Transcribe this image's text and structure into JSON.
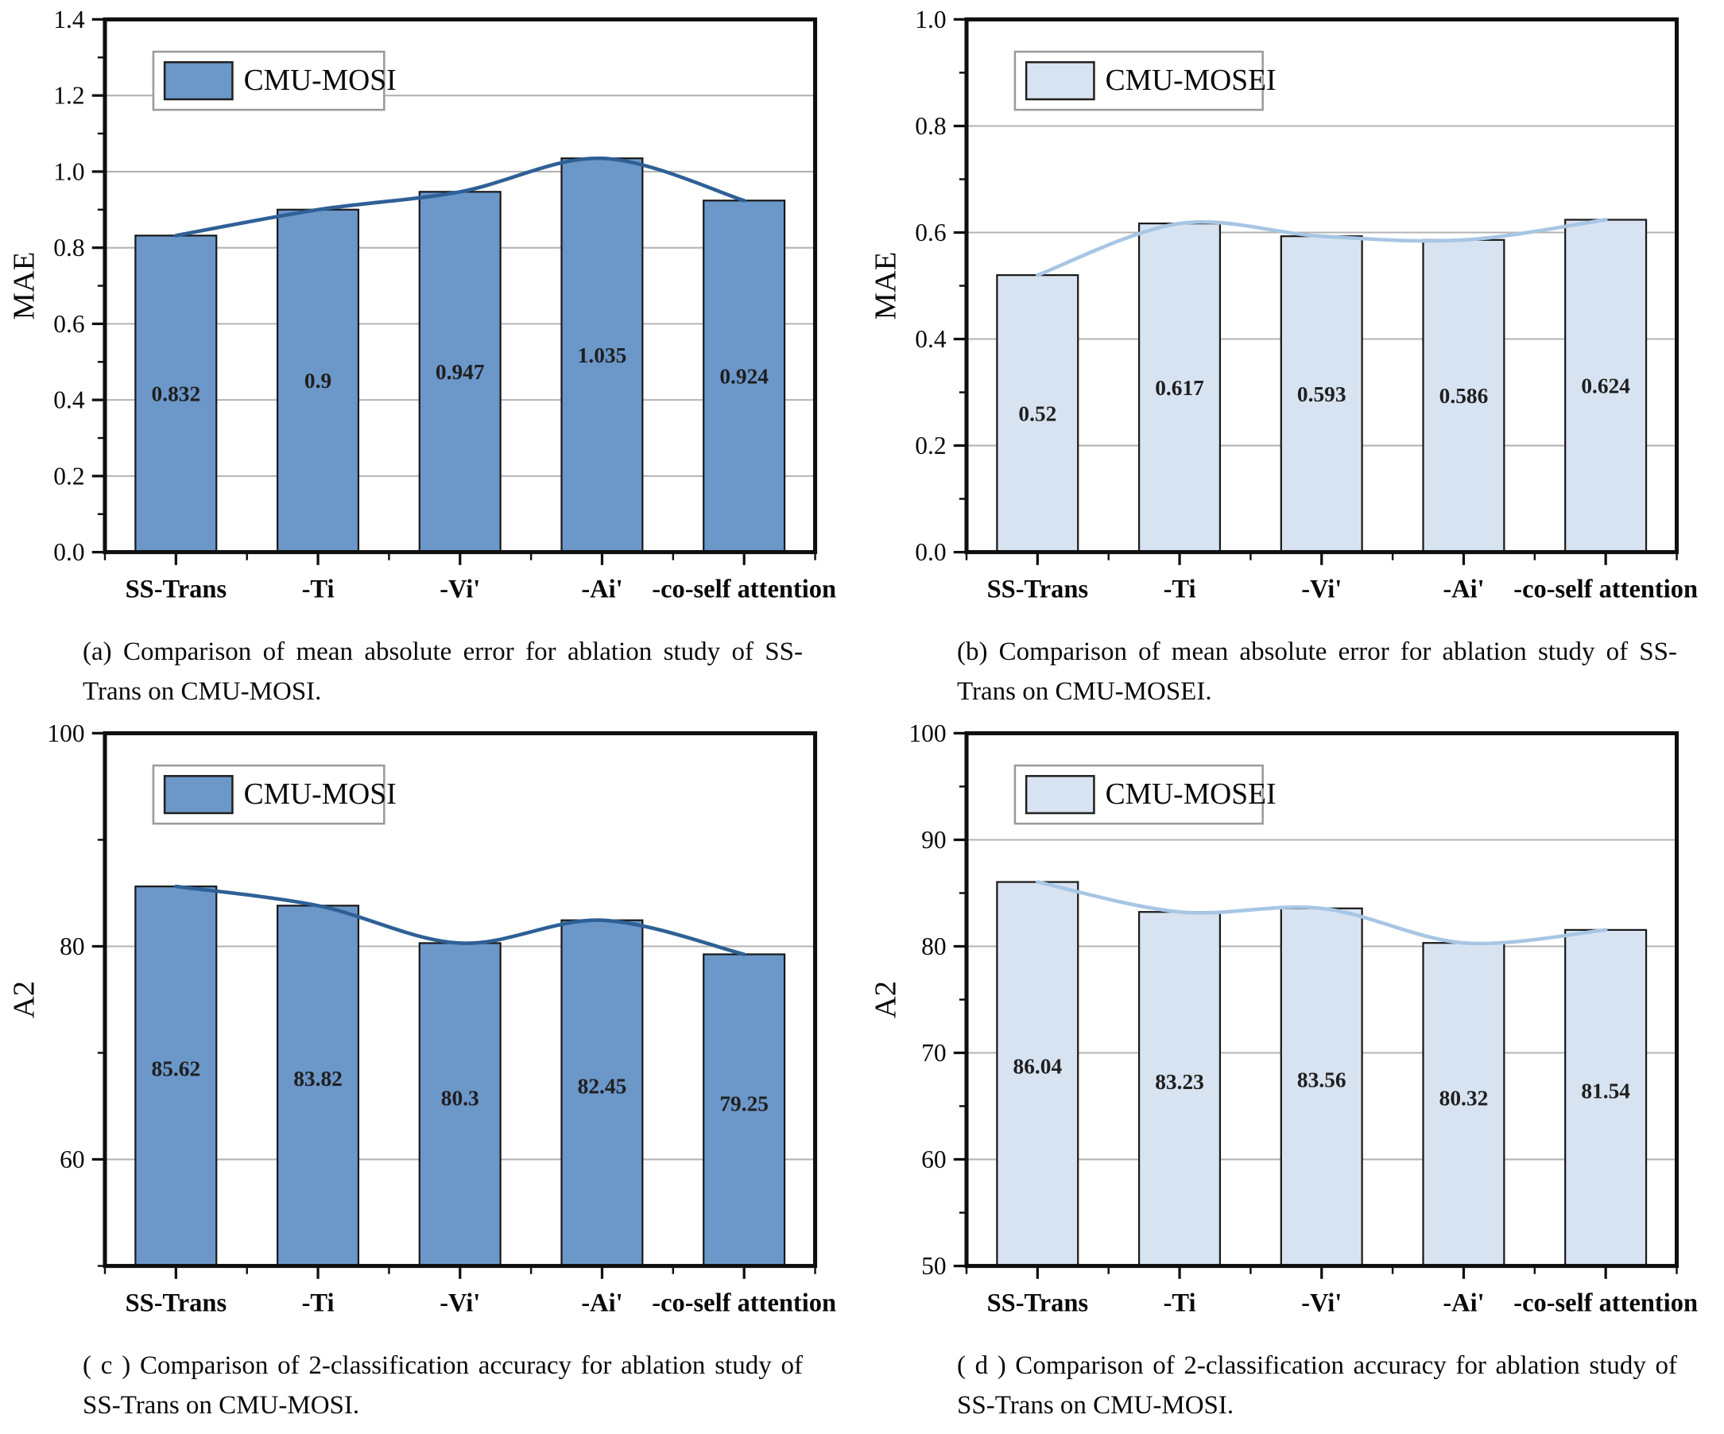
{
  "page": {
    "background": "#ffffff"
  },
  "chart_data": [
    {
      "id": "a",
      "type": "bar",
      "legend": "CMU-MOSI",
      "ylabel": "MAE",
      "ylim": [
        0.0,
        1.4
      ],
      "yticks": [
        {
          "v": 0.0,
          "label": "0.0"
        },
        {
          "v": 0.2,
          "label": "0.2"
        },
        {
          "v": 0.4,
          "label": "0.4"
        },
        {
          "v": 0.6,
          "label": "0.6"
        },
        {
          "v": 0.8,
          "label": "0.8"
        },
        {
          "v": 1.0,
          "label": "1.0"
        },
        {
          "v": 1.2,
          "label": "1.2"
        },
        {
          "v": 1.4,
          "label": "1.4"
        }
      ],
      "minor_yticks": [
        0.1,
        0.3,
        0.5,
        0.7,
        0.9,
        1.1,
        1.3
      ],
      "grid_values": [
        0.2,
        0.4,
        0.6,
        0.8,
        1.0,
        1.2
      ],
      "categories": [
        "SS-Trans",
        "-Ti",
        "-Vi'",
        "-Ai'",
        "-co-self attention"
      ],
      "values": [
        0.832,
        0.9,
        0.947,
        1.035,
        0.924
      ],
      "value_labels": [
        "0.832",
        "0.9",
        "0.947",
        "1.035",
        "0.924"
      ],
      "bar_color": "#6b97c9",
      "line_color": "#2e6096",
      "label_frac": 0.5,
      "caption": "(a) Comparison of mean absolute error for ablation study of SS-Trans on CMU-MOSI."
    },
    {
      "id": "b",
      "type": "bar",
      "legend": "CMU-MOSEI",
      "ylabel": "MAE",
      "ylim": [
        0.0,
        1.0
      ],
      "yticks": [
        {
          "v": 0.0,
          "label": "0.0"
        },
        {
          "v": 0.2,
          "label": "0.2"
        },
        {
          "v": 0.4,
          "label": "0.4"
        },
        {
          "v": 0.6,
          "label": "0.6"
        },
        {
          "v": 0.8,
          "label": "0.8"
        },
        {
          "v": 1.0,
          "label": "1.0"
        }
      ],
      "minor_yticks": [
        0.1,
        0.3,
        0.5,
        0.7,
        0.9
      ],
      "grid_values": [
        0.2,
        0.4,
        0.6,
        0.8
      ],
      "categories": [
        "SS-Trans",
        "-Ti",
        "-Vi'",
        "-Ai'",
        "-co-self attention"
      ],
      "values": [
        0.52,
        0.617,
        0.593,
        0.586,
        0.624
      ],
      "value_labels": [
        "0.52",
        "0.617",
        "0.593",
        "0.586",
        "0.624"
      ],
      "bar_color": "#d8e3f1",
      "line_color": "#a7c6e4",
      "label_frac": 0.5,
      "caption": "(b) Comparison of mean absolute error for ablation study of SS-Trans on CMU-MOSEI."
    },
    {
      "id": "c",
      "type": "bar",
      "legend": "CMU-MOSI",
      "ylabel": "A2",
      "ylim": [
        50,
        100
      ],
      "yticks": [
        {
          "v": 60,
          "label": "60"
        },
        {
          "v": 80,
          "label": "80"
        },
        {
          "v": 100,
          "label": "100"
        }
      ],
      "minor_yticks": [
        50,
        70,
        90
      ],
      "grid_values": [
        60,
        80
      ],
      "categories": [
        "SS-Trans",
        "-Ti",
        "-Vi'",
        "-Ai'",
        "-co-self attention"
      ],
      "values": [
        85.62,
        83.82,
        80.3,
        82.45,
        79.25
      ],
      "value_labels": [
        "85.62",
        "83.82",
        "80.3",
        "82.45",
        "79.25"
      ],
      "bar_color": "#6b97c9",
      "line_color": "#2e6096",
      "label_frac": 0.52,
      "caption": "( c ) Comparison of 2-classification accuracy for ablation study of SS-Trans on CMU-MOSI."
    },
    {
      "id": "d",
      "type": "bar",
      "legend": "CMU-MOSEI",
      "ylabel": "A2",
      "ylim": [
        50,
        100
      ],
      "yticks": [
        {
          "v": 50,
          "label": "50"
        },
        {
          "v": 60,
          "label": "60"
        },
        {
          "v": 70,
          "label": "70"
        },
        {
          "v": 80,
          "label": "80"
        },
        {
          "v": 90,
          "label": "90"
        },
        {
          "v": 100,
          "label": "100"
        }
      ],
      "minor_yticks": [
        55,
        65,
        75,
        85,
        95
      ],
      "grid_values": [
        60,
        70,
        80,
        90
      ],
      "categories": [
        "SS-Trans",
        "-Ti",
        "-Vi'",
        "-Ai'",
        "-co-self attention"
      ],
      "values": [
        86.04,
        83.23,
        83.56,
        80.32,
        81.54
      ],
      "value_labels": [
        "86.04",
        "83.23",
        "83.56",
        "80.32",
        "81.54"
      ],
      "bar_color": "#d8e3f1",
      "line_color": "#a7c6e4",
      "label_frac": 0.52,
      "caption": "( d ) Comparison of 2-classification accuracy for ablation study of SS-Trans on CMU-MOSI."
    }
  ]
}
